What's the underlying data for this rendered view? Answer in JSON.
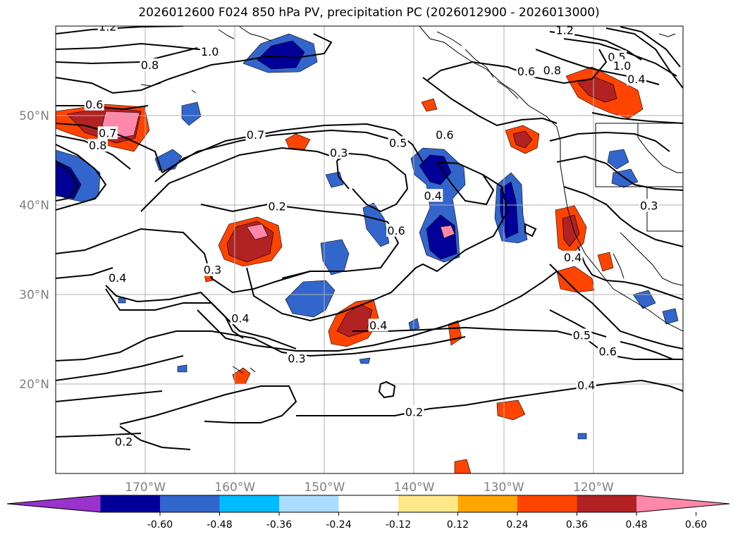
{
  "title": "2026012600 F024 850 hPa PV, precipitation PC (2026012900 - 2026013000)",
  "axes": {
    "lon_labels": [
      "170°W",
      "160°W",
      "150°W",
      "140°W",
      "130°W",
      "120°W"
    ],
    "lat_labels": [
      "50°N",
      "40°N",
      "30°N",
      "20°N"
    ],
    "lon_range": [
      -180,
      -110
    ],
    "lat_range": [
      10,
      60
    ]
  },
  "colorbar": {
    "ticks": [
      "-0.60",
      "-0.48",
      "-0.36",
      "-0.24",
      "-0.12",
      "0.12",
      "0.24",
      "0.36",
      "0.48",
      "0.60"
    ],
    "colors": [
      "#9933cc",
      "#000099",
      "#3366cc",
      "#00bbff",
      "#aaddff",
      "#ffffff",
      "#ffe88a",
      "#ffa500",
      "#ff4400",
      "#b22222",
      "#ff88aa"
    ],
    "extend": "both"
  },
  "contour_labels": [
    {
      "text": "1.2",
      "lon": -174.2,
      "lat": 59.9
    },
    {
      "text": "1.0",
      "lon": -162.8,
      "lat": 57.1
    },
    {
      "text": "0.8",
      "lon": -169.5,
      "lat": 55.6
    },
    {
      "text": "0.6",
      "lon": -175.7,
      "lat": 51.2
    },
    {
      "text": "0.7",
      "lon": -174.2,
      "lat": 48.0
    },
    {
      "text": "0.8",
      "lon": -175.3,
      "lat": 46.6
    },
    {
      "text": "0.7",
      "lon": -157.7,
      "lat": 47.8
    },
    {
      "text": "0.5",
      "lon": -141.8,
      "lat": 46.9
    },
    {
      "text": "0.3",
      "lon": -148.4,
      "lat": 45.8
    },
    {
      "text": "0.4",
      "lon": -137.9,
      "lat": 41.0
    },
    {
      "text": "0.2",
      "lon": -155.3,
      "lat": 39.8
    },
    {
      "text": "0.6",
      "lon": -142.0,
      "lat": 37.1
    },
    {
      "text": "0.4",
      "lon": -173.1,
      "lat": 31.8
    },
    {
      "text": "0.3",
      "lon": -162.5,
      "lat": 32.7
    },
    {
      "text": "0.4",
      "lon": -159.4,
      "lat": 27.3
    },
    {
      "text": "0.4",
      "lon": -144.0,
      "lat": 26.5
    },
    {
      "text": "0.3",
      "lon": -153.1,
      "lat": 22.8
    },
    {
      "text": "0.2",
      "lon": -140.0,
      "lat": 16.8
    },
    {
      "text": "0.2",
      "lon": -172.4,
      "lat": 13.5
    },
    {
      "text": "1.2",
      "lon": -123.2,
      "lat": 59.5
    },
    {
      "text": "0.5",
      "lon": -117.4,
      "lat": 56.5
    },
    {
      "text": "1.0",
      "lon": -116.8,
      "lat": 55.5
    },
    {
      "text": "0.4",
      "lon": -115.2,
      "lat": 54.0
    },
    {
      "text": "0.6",
      "lon": -127.5,
      "lat": 54.9
    },
    {
      "text": "0.8",
      "lon": -124.6,
      "lat": 55.0
    },
    {
      "text": "0.6",
      "lon": -136.6,
      "lat": 47.8
    },
    {
      "text": "0.3",
      "lon": -113.8,
      "lat": 39.9
    },
    {
      "text": "0.4",
      "lon": -122.3,
      "lat": 34.1
    },
    {
      "text": "0.5",
      "lon": -121.3,
      "lat": 25.4
    },
    {
      "text": "0.6",
      "lon": -118.4,
      "lat": 23.6
    },
    {
      "text": "0.4",
      "lon": -120.8,
      "lat": 19.8
    }
  ]
}
